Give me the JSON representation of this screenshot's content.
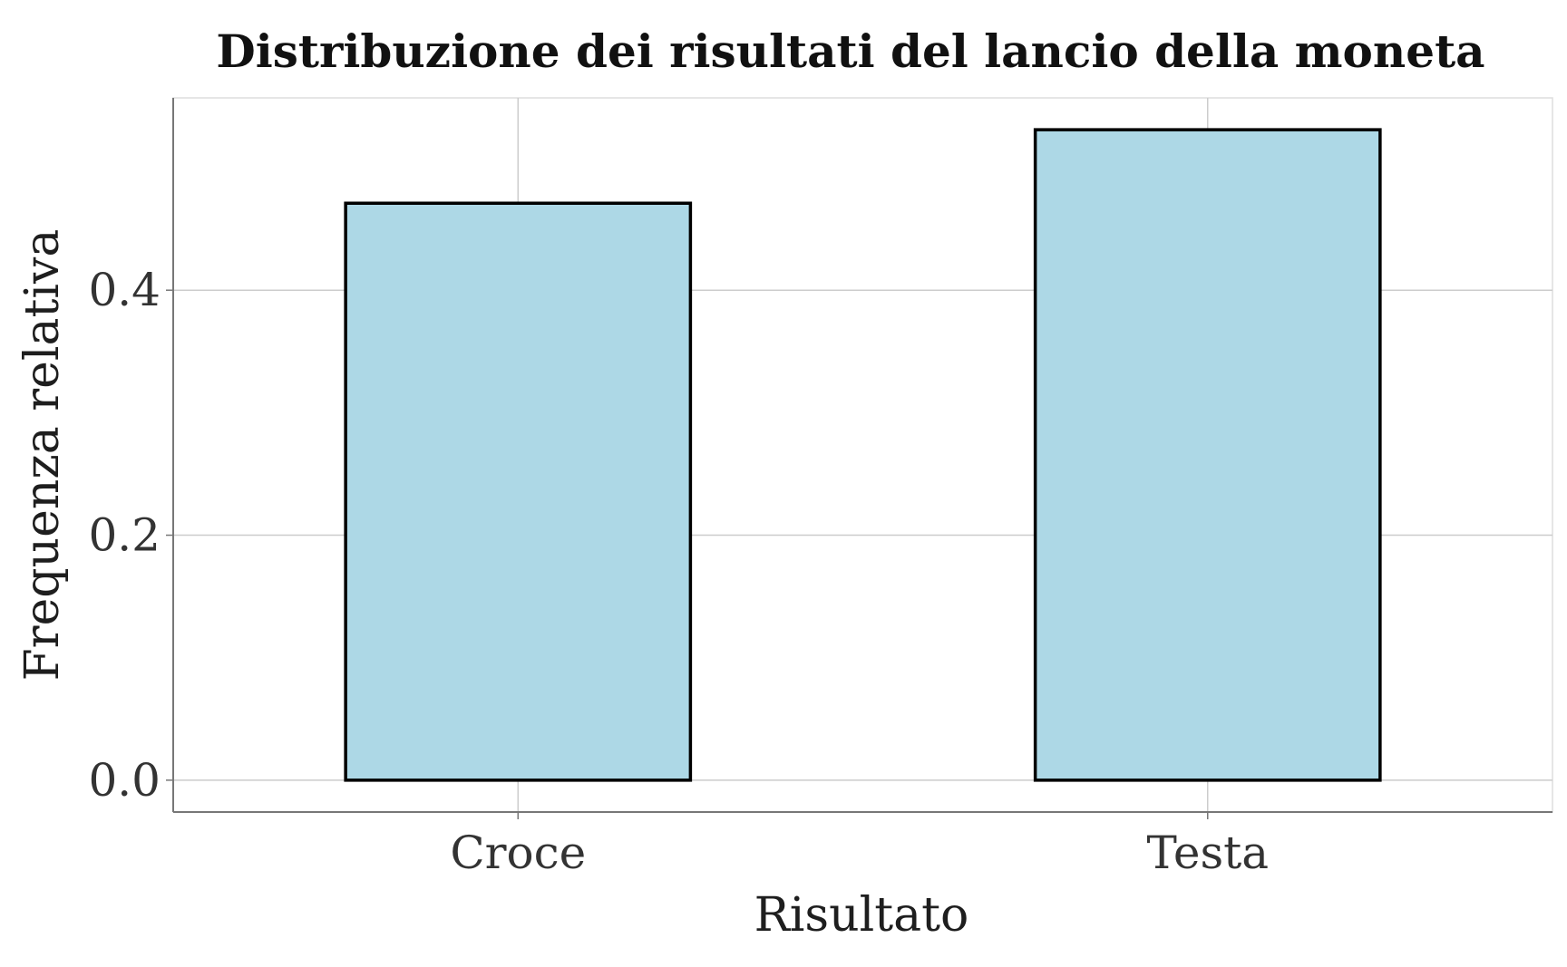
{
  "chart_data": {
    "type": "bar",
    "title": "Distribuzione dei risultati del lancio della moneta",
    "xlabel": "Risultato",
    "ylabel": "Frequenza relativa",
    "categories": [
      "Croce",
      "Testa"
    ],
    "values": [
      0.471,
      0.531
    ],
    "ylim": [
      -0.026,
      0.557
    ],
    "yticks": [
      0.0,
      0.2,
      0.4
    ],
    "ytick_labels": [
      "0.0",
      "0.2",
      "0.4"
    ],
    "grid": true,
    "legend": "none",
    "colors": {
      "bar_fill": "#ADD8E6",
      "bar_stroke": "#000000",
      "grid": "#cccccc",
      "axis": "#777777",
      "text": "#333333"
    }
  }
}
